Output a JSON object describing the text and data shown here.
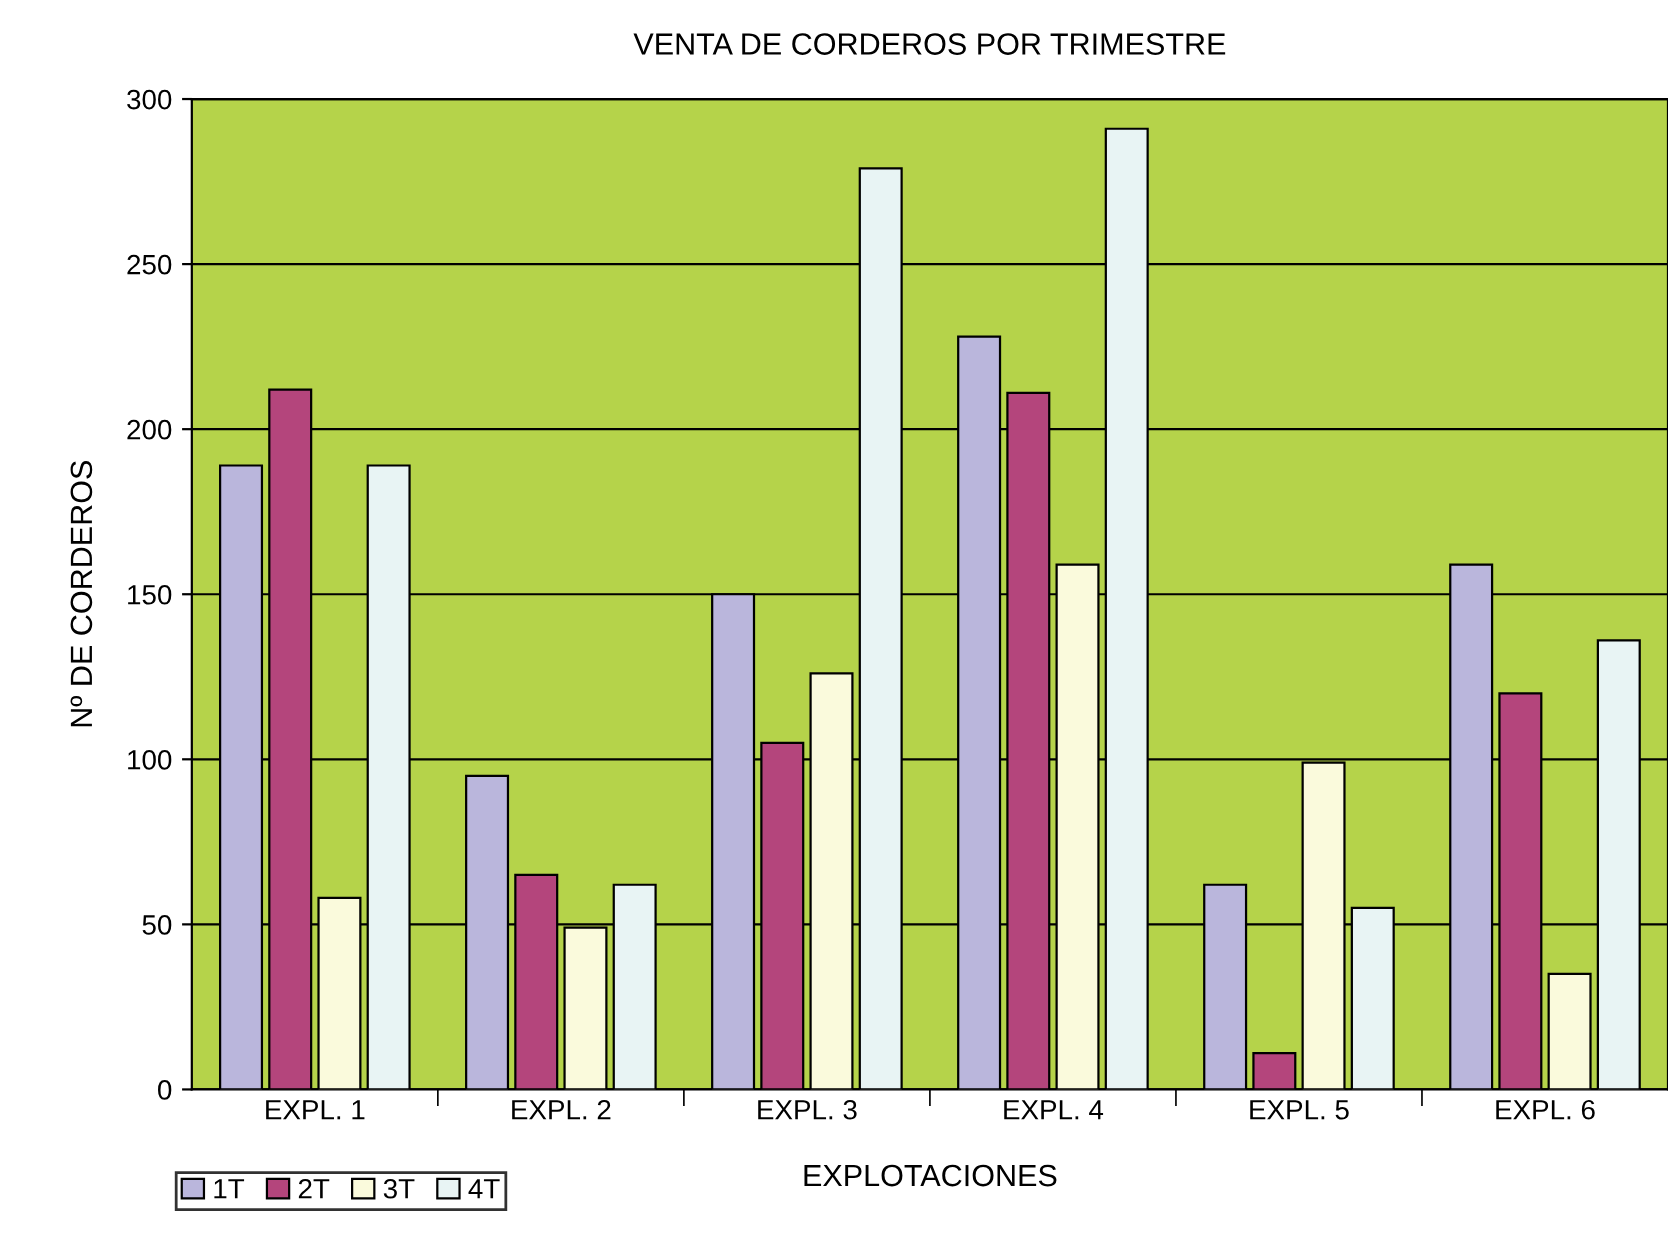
{
  "chart_data": {
    "type": "bar",
    "title": "VENTA DE CORDEROS POR TRIMESTRE",
    "xlabel": "EXPLOTACIONES",
    "ylabel": "Nº DE CORDEROS",
    "categories": [
      "EXPL. 1",
      "EXPL. 2",
      "EXPL. 3",
      "EXPL. 4",
      "EXPL. 5",
      "EXPL. 6"
    ],
    "series": [
      {
        "name": "1T",
        "color": "#bab6dc",
        "values": [
          189,
          95,
          150,
          228,
          62,
          159
        ]
      },
      {
        "name": "2T",
        "color": "#b4457c",
        "values": [
          212,
          65,
          105,
          211,
          11,
          120
        ]
      },
      {
        "name": "3T",
        "color": "#fafadc",
        "values": [
          58,
          49,
          126,
          159,
          99,
          35
        ]
      },
      {
        "name": "4T",
        "color": "#e8f4f4",
        "values": [
          189,
          62,
          279,
          291,
          55,
          136
        ]
      }
    ],
    "ylim": [
      0,
      300
    ],
    "yticks": [
      0,
      50,
      100,
      150,
      200,
      250,
      300
    ],
    "grid": "y",
    "legend": "bottom left"
  }
}
